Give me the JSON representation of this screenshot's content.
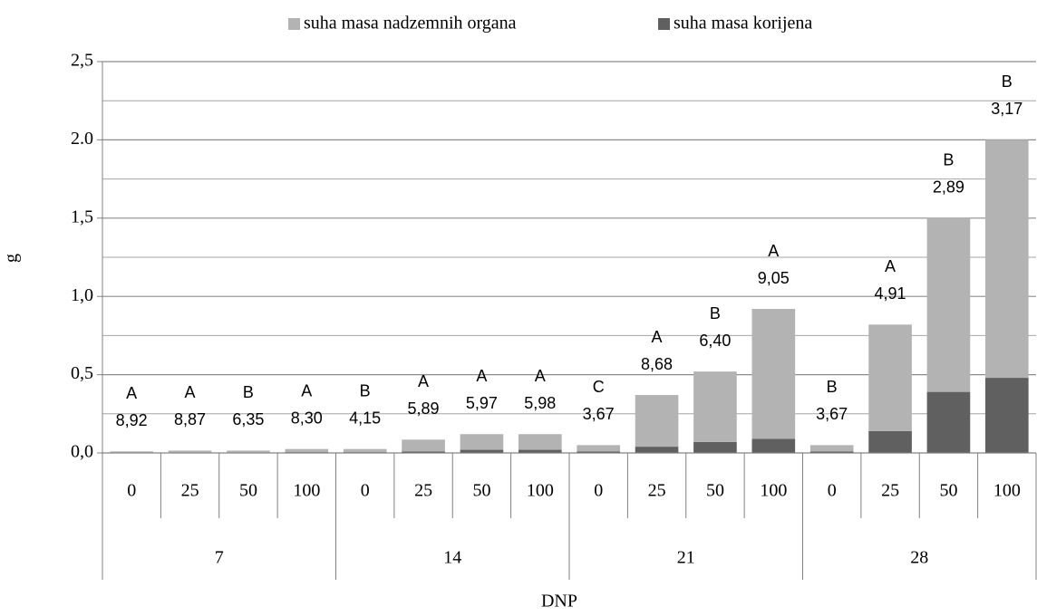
{
  "chart_data": {
    "type": "stacked_bar",
    "x_label": "DNP",
    "y_label": "g",
    "groups": [
      "7",
      "14",
      "21",
      "28"
    ],
    "categories": [
      "0",
      "25",
      "50",
      "100",
      "0",
      "25",
      "50",
      "100",
      "0",
      "25",
      "50",
      "100",
      "0",
      "25",
      "50",
      "100"
    ],
    "series": [
      {
        "name": "suha masa nadzemnih organa",
        "color": "#b3b3b3",
        "values": [
          0.007,
          0.012,
          0.012,
          0.02,
          0.02,
          0.075,
          0.1,
          0.1,
          0.04,
          0.33,
          0.45,
          0.83,
          0.04,
          0.68,
          1.11,
          1.52
        ]
      },
      {
        "name": "suha masa korijena",
        "color": "#606060",
        "values": [
          0.003,
          0.003,
          0.003,
          0.005,
          0.005,
          0.01,
          0.02,
          0.02,
          0.01,
          0.04,
          0.07,
          0.09,
          0.01,
          0.14,
          0.39,
          0.48
        ]
      }
    ],
    "annotation_letters": [
      "A",
      "A",
      "B",
      "A",
      "B",
      "A",
      "A",
      "A",
      "C",
      "A",
      "B",
      "A",
      "B",
      "A",
      "B",
      "B"
    ],
    "annotation_numbers": [
      "8,92",
      "8,87",
      "6,35",
      "8,30",
      "4,15",
      "5,89",
      "5,97",
      "5,98",
      "3,67",
      "8,68",
      "6,40",
      "9,05",
      "3,67",
      "4,91",
      "2,89",
      "3,17"
    ],
    "ylim": [
      0,
      2.5
    ],
    "yticks": [
      {
        "value": 0,
        "label": "0,0"
      },
      {
        "value": 0.5,
        "label": "0,5"
      },
      {
        "value": 1,
        "label": "1,0"
      },
      {
        "value": 1.5,
        "label": "1,5"
      },
      {
        "value": 2,
        "label": "2.0"
      },
      {
        "value": 2.5,
        "label": "2,5"
      }
    ],
    "minor_yticks": [
      0.25,
      0.75,
      1.25,
      1.75,
      2.25
    ],
    "grid": true,
    "legend": "top"
  }
}
